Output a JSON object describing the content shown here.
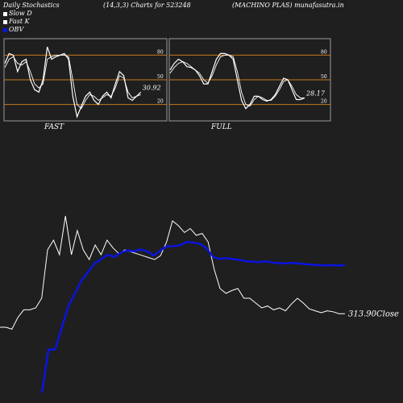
{
  "header": {
    "left": "Daily Stochastics",
    "middle": "(14,3,3) Charts for 523248",
    "right": "(MACHINO PLAS) munafasutra.in"
  },
  "legend": {
    "slow_d": "Slow  D",
    "fast_k": "Fast K",
    "obv": "OBV"
  },
  "colors": {
    "background": "#1f1f1f",
    "stoch_line": "#ffffff",
    "level_line": "#c87a1e",
    "obv": "#0a14e0",
    "price": "#ffffff"
  },
  "chart_data": [
    {
      "type": "line",
      "name": "fast",
      "label": "FAST",
      "ylim": [
        0,
        100
      ],
      "levels": [
        20,
        50,
        80
      ],
      "tick_labels": [
        "80",
        "50",
        "20"
      ],
      "value_label": "30.92",
      "series": [
        {
          "name": "Fast K",
          "values": [
            70,
            82,
            80,
            60,
            72,
            75,
            50,
            38,
            35,
            50,
            90,
            75,
            78,
            80,
            82,
            75,
            30,
            5,
            18,
            30,
            35,
            25,
            20,
            30,
            35,
            28,
            45,
            60,
            55,
            28,
            25,
            30,
            35
          ]
        },
        {
          "name": "Slow  D",
          "values": [
            65,
            75,
            78,
            70,
            68,
            72,
            60,
            45,
            40,
            45,
            75,
            78,
            80,
            80,
            80,
            78,
            50,
            20,
            15,
            25,
            32,
            30,
            25,
            28,
            32,
            30,
            40,
            55,
            52,
            35,
            28,
            30,
            32
          ]
        }
      ]
    },
    {
      "type": "line",
      "name": "full",
      "label": "FULL",
      "ylim": [
        0,
        100
      ],
      "levels": [
        20,
        50,
        80
      ],
      "tick_labels": [
        "80",
        "50",
        "20"
      ],
      "value_label": "28.17",
      "series": [
        {
          "name": "K",
          "values": [
            62,
            70,
            75,
            72,
            66,
            65,
            62,
            55,
            45,
            45,
            60,
            75,
            82,
            82,
            80,
            75,
            50,
            25,
            15,
            20,
            30,
            30,
            26,
            24,
            26,
            32,
            42,
            52,
            50,
            38,
            26,
            26,
            28
          ]
        },
        {
          "name": "D",
          "values": [
            58,
            65,
            70,
            72,
            70,
            66,
            62,
            58,
            50,
            46,
            55,
            68,
            78,
            80,
            80,
            78,
            60,
            35,
            20,
            18,
            26,
            30,
            28,
            25,
            25,
            30,
            38,
            48,
            50,
            42,
            32,
            28,
            28
          ]
        }
      ]
    },
    {
      "type": "line",
      "name": "price-obv",
      "close_label": "313.90Close",
      "series": [
        {
          "name": "Price",
          "values": [
            300,
            300,
            298,
            310,
            318,
            318,
            320,
            330,
            380,
            390,
            375,
            415,
            375,
            400,
            380,
            370,
            385,
            375,
            390,
            382,
            376,
            380,
            378,
            376,
            374,
            372,
            370,
            374,
            388,
            410,
            405,
            398,
            402,
            395,
            397,
            388,
            360,
            340,
            335,
            338,
            340,
            330,
            330,
            325,
            320,
            322,
            318,
            320,
            317,
            324,
            330,
            325,
            319,
            317,
            315,
            317,
            316,
            314,
            313.9
          ]
        },
        {
          "name": "OBV",
          "values": [
            -200,
            -100,
            -100,
            -50,
            0,
            30,
            60,
            80,
            100,
            110,
            120,
            115,
            125,
            130,
            128,
            132,
            128,
            118,
            130,
            140,
            140,
            142,
            150,
            148,
            145,
            135,
            115,
            110,
            112,
            110,
            108,
            105,
            104,
            103,
            105,
            102,
            100,
            100,
            101,
            100,
            98,
            97,
            96,
            95,
            96,
            95,
            96
          ]
        }
      ]
    }
  ]
}
